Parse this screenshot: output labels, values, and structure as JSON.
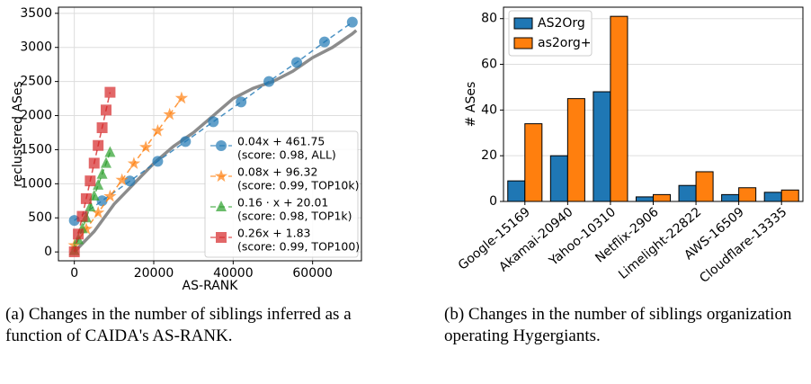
{
  "chart_data": [
    {
      "type": "scatter",
      "xlabel": "AS-RANK",
      "ylabel": "reclustered ASes",
      "xlim": [
        -4000,
        72300
      ],
      "ylim": [
        -130,
        3590
      ],
      "xticks": [
        0,
        20000,
        40000,
        60000
      ],
      "yticks": [
        0,
        500,
        1000,
        1500,
        2000,
        2500,
        3000,
        3500
      ],
      "grid": true,
      "legend": "lower right",
      "series": [
        {
          "color": "#8c8c8c",
          "marker": "none",
          "x": [
            0,
            5000,
            10000,
            15000,
            20000,
            25000,
            30000,
            35000,
            40000,
            45000,
            50000,
            55000,
            60000,
            65000,
            70000,
            71000
          ],
          "values": [
            0,
            300,
            700,
            1000,
            1300,
            1550,
            1750,
            2000,
            2250,
            2400,
            2500,
            2650,
            2850,
            3000,
            3200,
            3250
          ]
        },
        {
          "name": "0.04x + 461.75",
          "detail": "(score: 0.98, ALL)",
          "color": "#1f77b4",
          "marker": "circle",
          "x": [
            0,
            7000,
            14000,
            21000,
            28000,
            35000,
            42000,
            49000,
            56000,
            63000,
            70000
          ],
          "values": [
            462,
            750,
            1040,
            1330,
            1620,
            1910,
            2200,
            2500,
            2780,
            3080,
            3370
          ]
        },
        {
          "name": "0.08x + 96.32",
          "detail": "(score: 0.99, TOP10k)",
          "color": "#ff7f0e",
          "marker": "star",
          "x": [
            0,
            3000,
            6000,
            9000,
            12000,
            15000,
            18000,
            21000,
            24000,
            27000
          ],
          "values": [
            96,
            336,
            576,
            816,
            1056,
            1296,
            1536,
            1776,
            2016,
            2256
          ]
        },
        {
          "name": "0.16 · x + 20.01",
          "detail": "(score: 0.98, TOP1k)",
          "color": "#2ca02c",
          "marker": "triangle",
          "x": [
            0,
            1000,
            2000,
            3000,
            4000,
            5000,
            6000,
            7000,
            8000,
            9000
          ],
          "values": [
            20,
            180,
            340,
            500,
            660,
            820,
            980,
            1140,
            1300,
            1460
          ]
        },
        {
          "name": "0.26x + 1.83",
          "detail": "(score: 0.99, TOP100)",
          "color": "#d62728",
          "marker": "square",
          "x": [
            0,
            1000,
            2000,
            3000,
            4000,
            5000,
            6000,
            7000,
            8000,
            9000
          ],
          "values": [
            2,
            262,
            522,
            782,
            1042,
            1302,
            1562,
            1822,
            2082,
            2342
          ]
        }
      ],
      "caption": "(a) Changes in the number of siblings inferred as a function of CAIDA's AS-RANK."
    },
    {
      "type": "bar",
      "ylabel": "# ASes",
      "ylim": [
        0,
        85
      ],
      "yticks": [
        0,
        20,
        40,
        60,
        80
      ],
      "grid": true,
      "legend": "upper left",
      "categories": [
        "Google-15169",
        "Akamai-20940",
        "Yahoo-10310",
        "Netflix-2906",
        "Limelight-22822",
        "AWS-16509",
        "Cloudflare-13335"
      ],
      "series": [
        {
          "name": "AS2Org",
          "color": "#1f77b4",
          "values": [
            9,
            20,
            48,
            2,
            7,
            3,
            4
          ]
        },
        {
          "name": "as2org+",
          "color": "#ff7f0e",
          "values": [
            34,
            45,
            81,
            3,
            13,
            6,
            5
          ]
        }
      ],
      "caption": "(b) Changes in the number of siblings organization operating Hygergiants."
    }
  ]
}
